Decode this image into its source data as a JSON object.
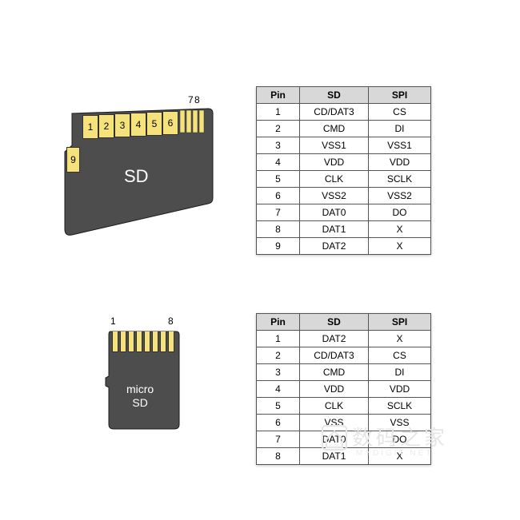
{
  "colors": {
    "card_body": "#4d4d4d",
    "card_stroke": "#1a1a1a",
    "pin_fill": "#f5e27a",
    "pin_border": "#333333",
    "table_header_bg": "#d8d8d8",
    "table_border": "#555555",
    "background": "#ffffff",
    "label_text": "#ffffff"
  },
  "sd": {
    "label": "SD",
    "pin_top_labels": {
      "seven": "7",
      "eight": "8"
    },
    "pins_visible": [
      "9",
      "1",
      "2",
      "3",
      "4",
      "5",
      "6"
    ],
    "table": {
      "columns": [
        "Pin",
        "SD",
        "SPI"
      ],
      "rows": [
        [
          "1",
          "CD/DAT3",
          "CS"
        ],
        [
          "2",
          "CMD",
          "DI"
        ],
        [
          "3",
          "VSS1",
          "VSS1"
        ],
        [
          "4",
          "VDD",
          "VDD"
        ],
        [
          "5",
          "CLK",
          "SCLK"
        ],
        [
          "6",
          "VSS2",
          "VSS2"
        ],
        [
          "7",
          "DAT0",
          "DO"
        ],
        [
          "8",
          "DAT1",
          "X"
        ],
        [
          "9",
          "DAT2",
          "X"
        ]
      ]
    }
  },
  "microsd": {
    "label_line1": "micro",
    "label_line2": "SD",
    "pin_top_labels": {
      "one": "1",
      "eight": "8"
    },
    "pin_count": 8,
    "table": {
      "columns": [
        "Pin",
        "SD",
        "SPI"
      ],
      "rows": [
        [
          "1",
          "DAT2",
          "X"
        ],
        [
          "2",
          "CD/DAT3",
          "CS"
        ],
        [
          "3",
          "CMD",
          "DI"
        ],
        [
          "4",
          "VDD",
          "VDD"
        ],
        [
          "5",
          "CLK",
          "SCLK"
        ],
        [
          "6",
          "VSS",
          "VSS"
        ],
        [
          "7",
          "DAT0",
          "DO"
        ],
        [
          "8",
          "DAT1",
          "X"
        ]
      ]
    }
  },
  "watermark": {
    "main": "数码之家",
    "sub": "MYDIGIT.NET"
  }
}
